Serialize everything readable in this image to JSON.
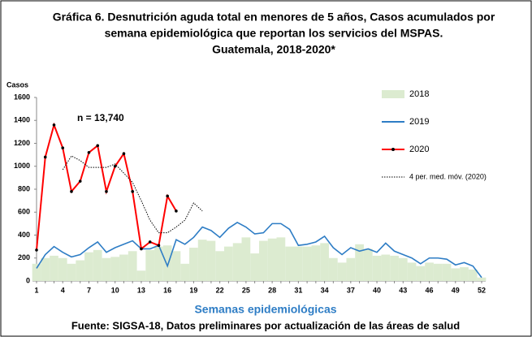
{
  "chart_data": {
    "type": "mixed",
    "title": [
      "Gráfica 6.  Desnutrición aguda total en menores de 5 años, Casos acumulados por",
      "semana epidemiológica que reportan los servicios del MSPAS.",
      "Guatemala, 2018-2020*"
    ],
    "y_label": "Casos",
    "x_label": "Semanas epidemiológicas",
    "source": "Fuente: SIGSA-18, Datos preliminares por actualización de las áreas de salud",
    "annotation": "n = 13,740",
    "categories": [
      1,
      null,
      null,
      4,
      null,
      null,
      7,
      null,
      null,
      10,
      null,
      null,
      13,
      null,
      null,
      16,
      null,
      null,
      19,
      null,
      null,
      22,
      null,
      null,
      25,
      null,
      null,
      28,
      null,
      null,
      31,
      null,
      null,
      34,
      null,
      null,
      37,
      null,
      null,
      40,
      null,
      null,
      43,
      null,
      null,
      46,
      null,
      null,
      49,
      null,
      null,
      52
    ],
    "ylim": [
      0,
      1600
    ],
    "yticks": [
      0,
      200,
      400,
      600,
      800,
      1000,
      1200,
      1400,
      1600
    ],
    "legend": "right",
    "series": [
      {
        "name": "2018",
        "kind": "bar",
        "color": "#dcebd0",
        "values": [
          150,
          200,
          220,
          200,
          150,
          180,
          250,
          270,
          200,
          210,
          230,
          260,
          90,
          270,
          300,
          310,
          260,
          150,
          290,
          360,
          350,
          260,
          300,
          330,
          380,
          240,
          350,
          370,
          380,
          300,
          300,
          300,
          310,
          330,
          200,
          160,
          200,
          320,
          280,
          220,
          230,
          220,
          200,
          160,
          130,
          160,
          150,
          150,
          110,
          120,
          100,
          30
        ]
      },
      {
        "name": "2019",
        "kind": "line",
        "color": "#2e7dc5",
        "values": [
          110,
          230,
          300,
          250,
          210,
          230,
          290,
          340,
          250,
          290,
          320,
          350,
          280,
          280,
          310,
          130,
          360,
          320,
          380,
          470,
          440,
          380,
          460,
          510,
          470,
          410,
          420,
          500,
          500,
          450,
          310,
          320,
          340,
          390,
          290,
          230,
          290,
          260,
          280,
          250,
          330,
          260,
          230,
          200,
          150,
          200,
          200,
          190,
          140,
          160,
          130,
          30
        ]
      },
      {
        "name": "2020",
        "kind": "marker-line",
        "color": "#ff0000",
        "values": [
          270,
          1080,
          1360,
          1160,
          780,
          870,
          1120,
          1180,
          780,
          1000,
          1110,
          780,
          280,
          340,
          310,
          740,
          610,
          null,
          null,
          null,
          null,
          null,
          null,
          null,
          null,
          null,
          null,
          null,
          null,
          null,
          null,
          null,
          null,
          null,
          null,
          null,
          null,
          null,
          null,
          null,
          null,
          null,
          null,
          null,
          null,
          null,
          null,
          null,
          null,
          null,
          null,
          null
        ]
      },
      {
        "name": "4 per. med. móv. (2020)",
        "kind": "dotted",
        "color": "#000000",
        "values": [
          null,
          null,
          null,
          970,
          1090,
          1050,
          990,
          990,
          990,
          1020,
          940,
          860,
          700,
          530,
          420,
          420,
          470,
          530,
          680,
          610,
          null,
          null,
          null,
          null,
          null,
          null,
          null,
          null,
          null,
          null,
          null,
          null,
          null,
          null,
          null,
          null,
          null,
          null,
          null,
          null,
          null,
          null,
          null,
          null,
          null,
          null,
          null,
          null,
          null,
          null,
          null,
          null
        ]
      }
    ]
  }
}
